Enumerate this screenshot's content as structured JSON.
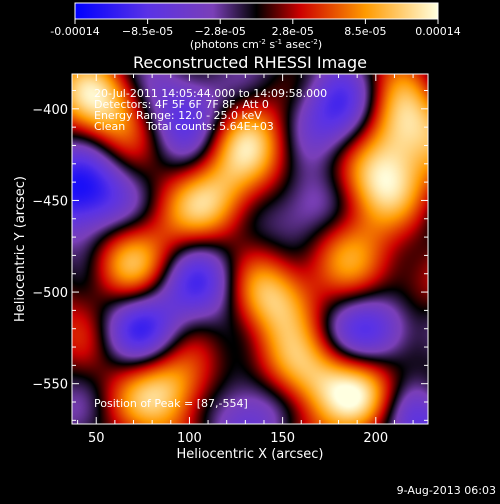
{
  "chart_data": {
    "type": "heatmap",
    "title": "Reconstructed RHESSI Image",
    "xlabel": "Heliocentric X (arcsec)",
    "ylabel": "Heliocentric Y (arcsec)",
    "xlim": [
      37,
      228
    ],
    "ylim": [
      -572,
      -381
    ],
    "x_ticks": [
      50,
      100,
      150,
      200
    ],
    "y_ticks": [
      -400,
      -450,
      -500,
      -550
    ],
    "colorbar": {
      "label": "(photons cm",
      "label_sup1": "-2",
      "label_mid1": " s",
      "label_sup2": "-1",
      "label_mid2": " asec",
      "label_sup3": "-2",
      "label_end": ")",
      "ticks": [
        "-0.00014",
        "−8.5e-05",
        "−2.8e-05",
        "2.8e-05",
        "8.5e-05",
        "0.00014"
      ],
      "range": [
        -0.00014,
        0.00014
      ],
      "colors": [
        "#0000ff",
        "#6b2dd2",
        "#000000",
        "#cc0000",
        "#ff9a00",
        "#ffffe0"
      ]
    },
    "annotations": {
      "time_range": "20-Jul-2011 14:05:44.000 to 14:09:58.000",
      "detectors": "Detectors: 4F 5F 6F 7F 8F, Att 0",
      "energy": "Energy Range: 12.0 - 25.0 keV",
      "method": "Clean",
      "total_counts": "Total counts: 5.64E+03",
      "peak": "Position of Peak = [87,-554]"
    },
    "peak_position": [
      87,
      -554
    ],
    "bright_regions": [
      [
        200,
        -440,
        1.0
      ],
      [
        212,
        -410,
        0.95
      ],
      [
        55,
        -395,
        0.85
      ],
      [
        115,
        -450,
        0.9
      ],
      [
        145,
        -500,
        1.0
      ],
      [
        65,
        -485,
        0.75
      ],
      [
        92,
        -552,
        1.0
      ],
      [
        195,
        -555,
        1.0
      ],
      [
        160,
        -545,
        0.8
      ],
      [
        132,
        -420,
        0.55
      ],
      [
        220,
        -495,
        0.45
      ],
      [
        180,
        -470,
        0.5
      ]
    ],
    "dark_regions": [
      [
        45,
        -445,
        -1.0
      ],
      [
        185,
        -405,
        -0.75
      ],
      [
        165,
        -455,
        -0.85
      ],
      [
        110,
        -495,
        -0.8
      ],
      [
        205,
        -520,
        -0.9
      ],
      [
        100,
        -395,
        -0.6
      ],
      [
        135,
        -560,
        -0.7
      ],
      [
        75,
        -520,
        -0.55
      ],
      [
        225,
        -570,
        -0.6
      ]
    ]
  },
  "footer": {
    "date": "9-Aug-2013 06:03"
  }
}
